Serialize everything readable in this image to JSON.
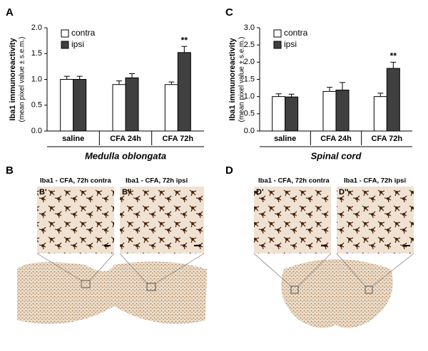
{
  "chart_data": [
    {
      "type": "bar",
      "label": "A",
      "ylabel": "Iba1  immunoreactivity",
      "ylabel_note": "(mean pixel value ± s.e.m.)",
      "group_label": "Medulla oblongata",
      "categories": [
        "saline",
        "CFA 24h",
        "CFA 72h"
      ],
      "series": [
        {
          "name": "contra",
          "color": "#ffffff",
          "values": [
            1.0,
            0.9,
            0.9
          ],
          "errors": [
            0.06,
            0.07,
            0.05
          ]
        },
        {
          "name": "ipsi",
          "color": "#404040",
          "values": [
            1.0,
            1.03,
            1.52
          ],
          "errors": [
            0.06,
            0.08,
            0.12
          ],
          "significance": [
            null,
            null,
            "**"
          ]
        }
      ],
      "ylim": [
        0,
        2
      ],
      "yticks": [
        {
          "value": 0,
          "label": "0.0"
        },
        {
          "value": 0.5,
          "label": "0.5"
        },
        {
          "value": 1,
          "label": "1.0"
        },
        {
          "value": 1.5,
          "label": "1.5"
        },
        {
          "value": 2,
          "label": "2.0"
        }
      ],
      "legend": "upper left"
    },
    {
      "type": "bar",
      "label": "C",
      "ylabel": "Iba1  immunoreactivity",
      "ylabel_note": "(mean pixel value ± s.e.m.)",
      "group_label": "Spinal cord",
      "categories": [
        "saline",
        "CFA 24h",
        "CFA 72h"
      ],
      "series": [
        {
          "name": "contra",
          "color": "#ffffff",
          "values": [
            1.0,
            1.15,
            1.0
          ],
          "errors": [
            0.08,
            0.12,
            0.1
          ]
        },
        {
          "name": "ipsi",
          "color": "#404040",
          "values": [
            0.99,
            1.19,
            1.82
          ],
          "errors": [
            0.08,
            0.22,
            0.18
          ],
          "significance": [
            null,
            null,
            "**"
          ]
        }
      ],
      "ylim": [
        0,
        3
      ],
      "yticks": [
        {
          "value": 0,
          "label": "0.0"
        },
        {
          "value": 0.5,
          "label": "0.5"
        },
        {
          "value": 1,
          "label": "1.0"
        },
        {
          "value": 1.5,
          "label": "1.5"
        },
        {
          "value": 2,
          "label": "2.0"
        },
        {
          "value": 2.5,
          "label": "2.5"
        },
        {
          "value": 3,
          "label": "3.0"
        }
      ],
      "legend": "upper left"
    }
  ],
  "micrographs": [
    {
      "label": "B",
      "images": [
        {
          "label": "B'",
          "caption": "Iba1 - CFA, 72h contra"
        },
        {
          "label": "B''",
          "caption": "Iba1 - CFA, 72h ipsi"
        }
      ]
    },
    {
      "label": "D",
      "images": [
        {
          "label": "D'",
          "caption": "Iba1 - CFA, 72h contra"
        },
        {
          "label": "D''",
          "caption": "Iba1 - CFA, 72h ipsi"
        }
      ]
    }
  ]
}
